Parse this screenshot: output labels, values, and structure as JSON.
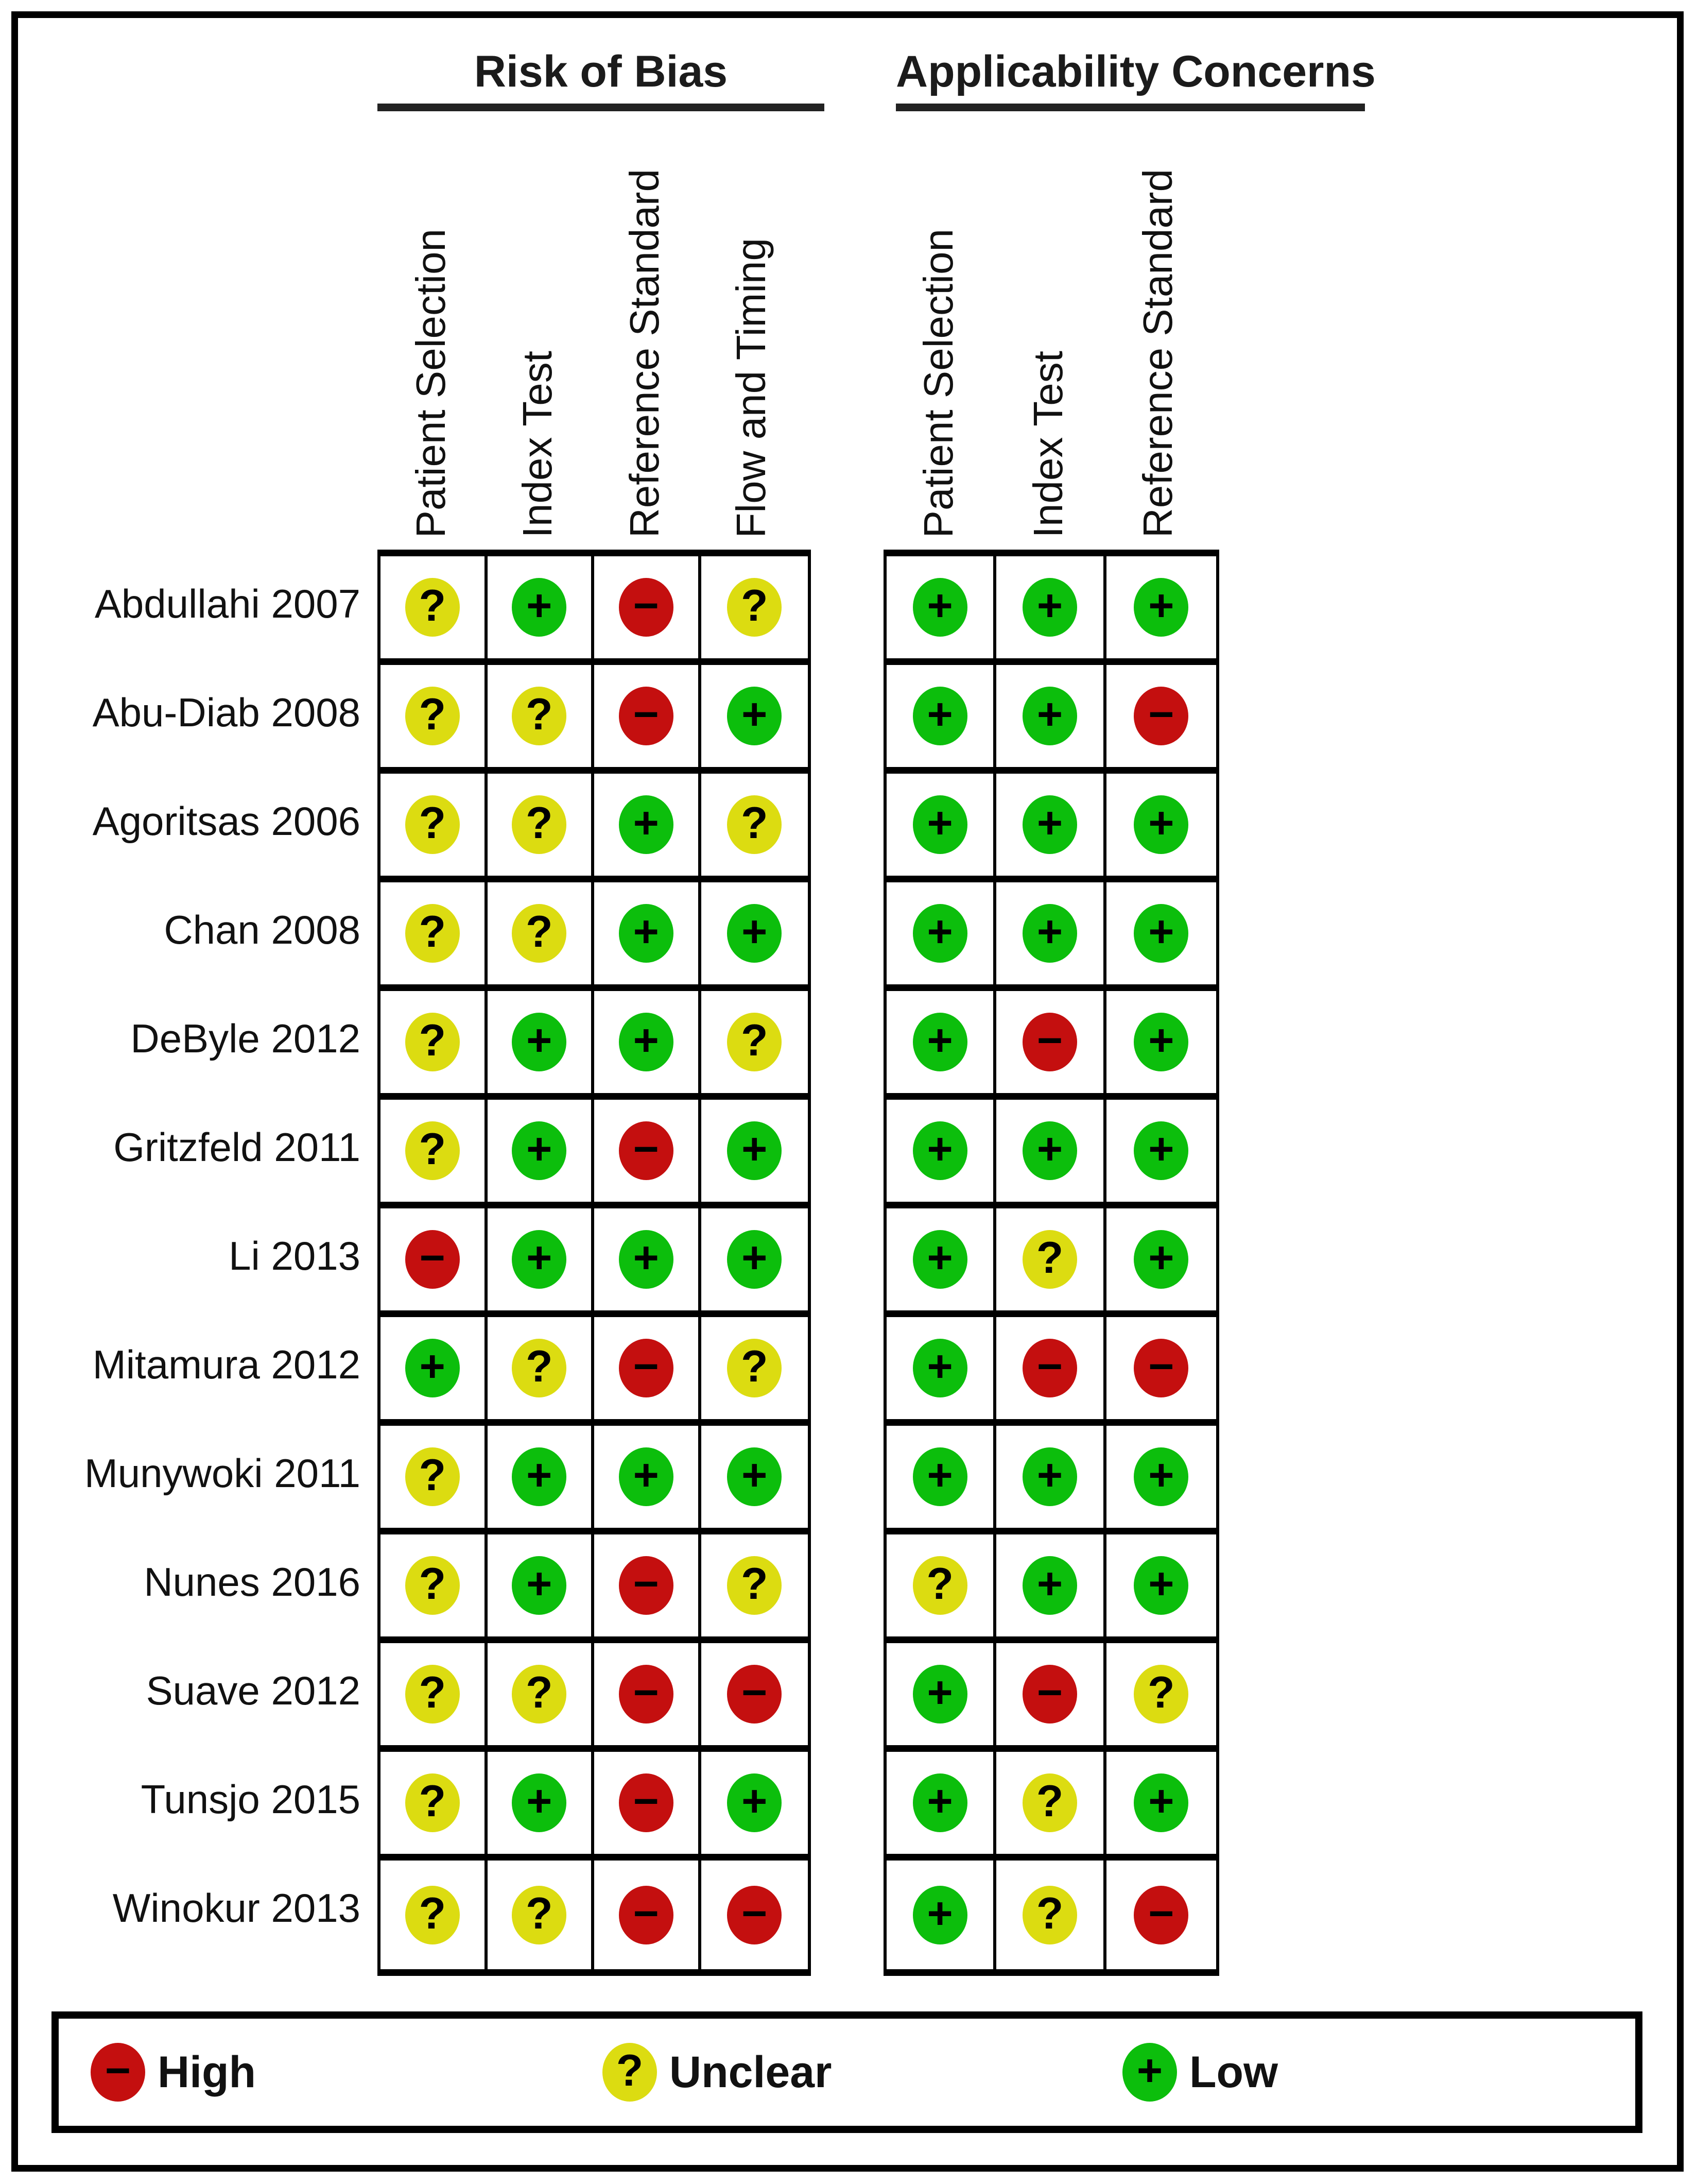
{
  "chart_data": {
    "type": "heatmap",
    "column_groups": [
      {
        "title": "Risk of Bias",
        "columns": [
          "Patient Selection",
          "Index Test",
          "Reference Standard",
          "Flow and Timing"
        ]
      },
      {
        "title": "Applicability Concerns",
        "columns": [
          "Patient Selection",
          "Index Test",
          "Reference Standard"
        ]
      }
    ],
    "rows": [
      {
        "study": "Abdullahi 2007",
        "risk_of_bias": [
          "Unclear",
          "Low",
          "High",
          "Unclear"
        ],
        "applicability_concerns": [
          "Low",
          "Low",
          "Low"
        ]
      },
      {
        "study": "Abu-Diab 2008",
        "risk_of_bias": [
          "Unclear",
          "Unclear",
          "High",
          "Low"
        ],
        "applicability_concerns": [
          "Low",
          "Low",
          "High"
        ]
      },
      {
        "study": "Agoritsas 2006",
        "risk_of_bias": [
          "Unclear",
          "Unclear",
          "Low",
          "Unclear"
        ],
        "applicability_concerns": [
          "Low",
          "Low",
          "Low"
        ]
      },
      {
        "study": "Chan 2008",
        "risk_of_bias": [
          "Unclear",
          "Unclear",
          "Low",
          "Low"
        ],
        "applicability_concerns": [
          "Low",
          "Low",
          "Low"
        ]
      },
      {
        "study": "DeByle 2012",
        "risk_of_bias": [
          "Unclear",
          "Low",
          "Low",
          "Unclear"
        ],
        "applicability_concerns": [
          "Low",
          "High",
          "Low"
        ]
      },
      {
        "study": "Gritzfeld 2011",
        "risk_of_bias": [
          "Unclear",
          "Low",
          "High",
          "Low"
        ],
        "applicability_concerns": [
          "Low",
          "Low",
          "Low"
        ]
      },
      {
        "study": "Li 2013",
        "risk_of_bias": [
          "High",
          "Low",
          "Low",
          "Low"
        ],
        "applicability_concerns": [
          "Low",
          "Unclear",
          "Low"
        ]
      },
      {
        "study": "Mitamura 2012",
        "risk_of_bias": [
          "Low",
          "Unclear",
          "High",
          "Unclear"
        ],
        "applicability_concerns": [
          "Low",
          "High",
          "High"
        ]
      },
      {
        "study": "Munywoki 2011",
        "risk_of_bias": [
          "Unclear",
          "Low",
          "Low",
          "Low"
        ],
        "applicability_concerns": [
          "Low",
          "Low",
          "Low"
        ]
      },
      {
        "study": "Nunes 2016",
        "risk_of_bias": [
          "Unclear",
          "Low",
          "High",
          "Unclear"
        ],
        "applicability_concerns": [
          "Unclear",
          "Low",
          "Low"
        ]
      },
      {
        "study": "Suave 2012",
        "risk_of_bias": [
          "Unclear",
          "Unclear",
          "High",
          "High"
        ],
        "applicability_concerns": [
          "Low",
          "High",
          "Unclear"
        ]
      },
      {
        "study": "Tunsjo 2015",
        "risk_of_bias": [
          "Unclear",
          "Low",
          "High",
          "Low"
        ],
        "applicability_concerns": [
          "Low",
          "Unclear",
          "Low"
        ]
      },
      {
        "study": "Winokur 2013",
        "risk_of_bias": [
          "Unclear",
          "Unclear",
          "High",
          "High"
        ],
        "applicability_concerns": [
          "Low",
          "Unclear",
          "High"
        ]
      }
    ],
    "legend": [
      {
        "label": "High",
        "symbol": "−",
        "color": "#C40F0F"
      },
      {
        "label": "Unclear",
        "symbol": "?",
        "color": "#DCDC11"
      },
      {
        "label": "Low",
        "symbol": "+",
        "color": "#0CBE0C"
      }
    ]
  }
}
